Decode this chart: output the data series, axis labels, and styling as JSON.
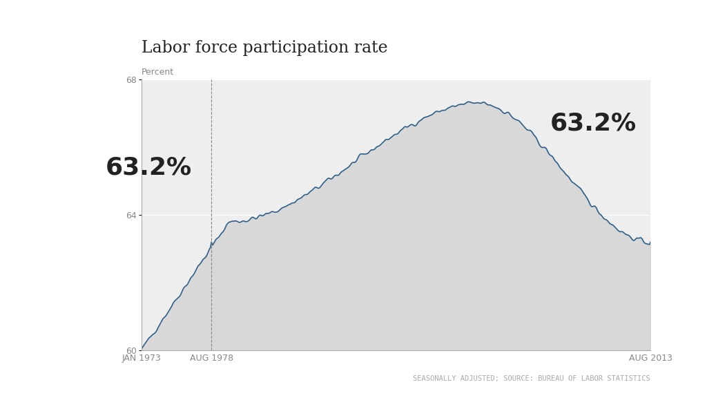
{
  "title": "Labor force participation rate",
  "ylabel": "Percent",
  "source_text": "SEASONALLY ADJUSTED; SOURCE: BUREAU OF LABOR STATISTICS",
  "ylim": [
    60,
    68
  ],
  "yticks": [
    60,
    64,
    68
  ],
  "xtick_labels": [
    "JAN 1973",
    "AUG 1978",
    "AUG 2013"
  ],
  "annotation_left_text": "63.2%",
  "annotation_right_text": "63.2%",
  "line_color": "#2E5F8A",
  "fill_color": "#D8D8D8",
  "background_color": "#FFFFFF",
  "chart_bg_color": "#EEEEEE",
  "title_fontsize": 17,
  "axis_fontsize": 9,
  "annotation_fontsize": 26,
  "source_fontsize": 7.5
}
